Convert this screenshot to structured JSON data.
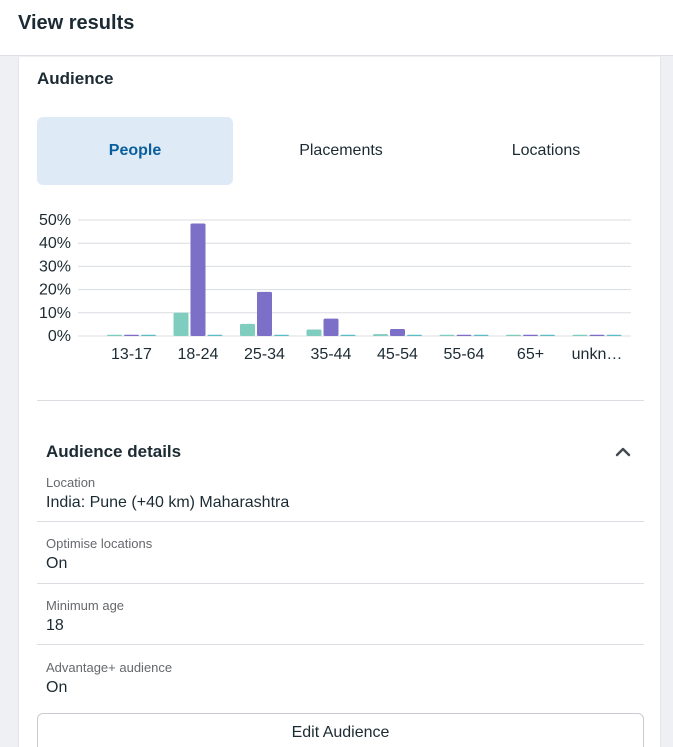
{
  "header": {
    "title": "View results"
  },
  "audience": {
    "title": "Audience",
    "tabs": [
      {
        "label": "People",
        "active": true
      },
      {
        "label": "Placements",
        "active": false
      },
      {
        "label": "Locations",
        "active": false
      }
    ]
  },
  "chart_data": {
    "type": "bar",
    "categories": [
      "13-17",
      "18-24",
      "25-34",
      "35-44",
      "45-54",
      "55-64",
      "65+",
      "unkn…"
    ],
    "series": [
      {
        "color": "#7fcdbf",
        "values": [
          0.3,
          10,
          5.2,
          2.8,
          0.8,
          0.3,
          0.3,
          0.3
        ]
      },
      {
        "color": "#7b6fc7",
        "values": [
          0.3,
          48.5,
          19,
          7.5,
          3,
          0.3,
          0.3,
          0.3
        ]
      },
      {
        "color": "#5bbcc4",
        "values": [
          0.3,
          0.3,
          0.3,
          0.3,
          0.3,
          0.3,
          0.3,
          0.3
        ]
      }
    ],
    "yticks": [
      "0%",
      "10%",
      "20%",
      "30%",
      "40%",
      "50%"
    ],
    "ylim": [
      0,
      50
    ],
    "grid": true
  },
  "details": {
    "title": "Audience details",
    "fields": [
      {
        "label": "Location",
        "value": "India: Pune (+40 km) Maharashtra"
      },
      {
        "label": "Optimise locations",
        "value": "On"
      },
      {
        "label": "Minimum age",
        "value": "18"
      },
      {
        "label": "Advantage+ audience",
        "value": "On"
      }
    ],
    "edit_label": "Edit Audience"
  }
}
